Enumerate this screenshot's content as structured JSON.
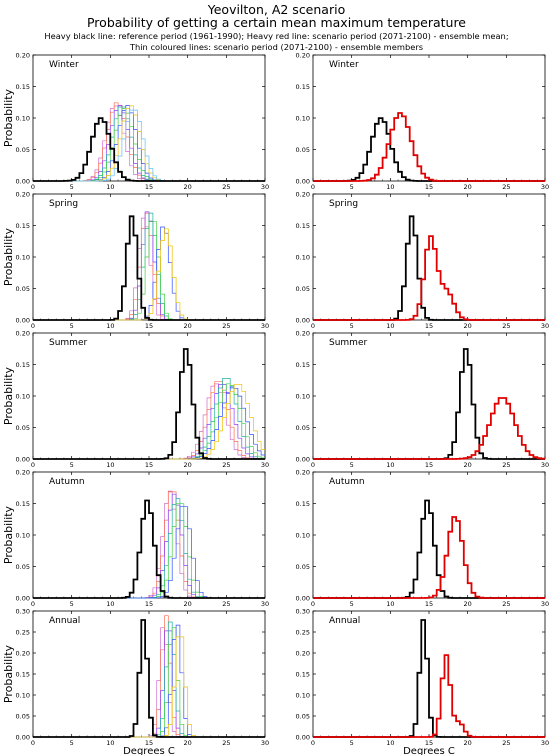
{
  "header": {
    "title_line1": "Yeovilton, A2 scenario",
    "title_line2": "Probability of getting a certain mean maximum temperature",
    "note_line1": "Heavy black line: reference period (1961-1990); Heavy red line: scenario period (2071-2100) - ensemble mean;",
    "note_line2": "Thin coloured lines: scenario period (2071-2100) - ensemble members"
  },
  "colors": {
    "reference": "#000000",
    "ensemble_mean": "#e00000",
    "members": [
      "#d070d0",
      "#ff7050",
      "#9040ff",
      "#20b0a0",
      "#40d040",
      "#3050ff",
      "#f0c000",
      "#60c0ff",
      "#ff40a0",
      "#80a000",
      "#b060ff"
    ]
  },
  "chart_data": [
    {
      "type": "line",
      "panel": "Winter",
      "column": "members",
      "xlabel": "",
      "ylabel": "Probability",
      "xlim": [
        0,
        30
      ],
      "ylim": [
        0,
        0.2
      ],
      "xticks": [
        "0",
        "5",
        "10",
        "15",
        "20",
        "25",
        "30"
      ],
      "yticks": [
        "0.00",
        "0.05",
        "0.10",
        "0.15",
        "0.20"
      ],
      "series": [
        {
          "role": "reference",
          "mean": 8.8,
          "sd": 1.25,
          "peak": 0.1
        },
        {
          "role": "member",
          "mean": 10.6,
          "sd": 1.2,
          "peak": 0.12
        },
        {
          "role": "member",
          "mean": 10.9,
          "sd": 1.25,
          "peak": 0.125
        },
        {
          "role": "member",
          "mean": 11.2,
          "sd": 1.2,
          "peak": 0.12
        },
        {
          "role": "member",
          "mean": 11.5,
          "sd": 1.2,
          "peak": 0.12
        },
        {
          "role": "member",
          "mean": 11.8,
          "sd": 1.25,
          "peak": 0.115
        },
        {
          "role": "member",
          "mean": 12.2,
          "sd": 1.2,
          "peak": 0.12
        },
        {
          "role": "member",
          "mean": 12.6,
          "sd": 1.25,
          "peak": 0.12
        },
        {
          "role": "member",
          "mean": 13.0,
          "sd": 1.2,
          "peak": 0.115
        }
      ]
    },
    {
      "type": "line",
      "panel": "Winter",
      "column": "mean",
      "xlabel": "",
      "ylabel": "",
      "xlim": [
        0,
        30
      ],
      "ylim": [
        0,
        0.2
      ],
      "xticks": [
        "0",
        "5",
        "10",
        "15",
        "20",
        "25",
        "30"
      ],
      "yticks": [
        "0.00",
        "0.05",
        "0.10",
        "0.15",
        "0.20"
      ],
      "series": [
        {
          "role": "reference",
          "mean": 8.8,
          "sd": 1.25,
          "peak": 0.1
        },
        {
          "role": "ensemble_mean",
          "mean": 11.3,
          "sd": 1.4,
          "peak": 0.108
        }
      ]
    },
    {
      "type": "line",
      "panel": "Spring",
      "column": "members",
      "xlabel": "",
      "ylabel": "Probability",
      "xlim": [
        0,
        30
      ],
      "ylim": [
        0,
        0.2
      ],
      "xticks": [
        "0",
        "5",
        "10",
        "15",
        "20",
        "25",
        "30"
      ],
      "yticks": [
        "0.00",
        "0.05",
        "0.10",
        "0.15",
        "0.20"
      ],
      "series": [
        {
          "role": "reference",
          "mean": 12.8,
          "sd": 0.7,
          "peak": 0.165
        },
        {
          "role": "member",
          "mean": 14.4,
          "sd": 0.75,
          "peak": 0.165
        },
        {
          "role": "member",
          "mean": 14.7,
          "sd": 0.8,
          "peak": 0.17
        },
        {
          "role": "member",
          "mean": 14.9,
          "sd": 0.75,
          "peak": 0.175
        },
        {
          "role": "member",
          "mean": 15.2,
          "sd": 0.8,
          "peak": 0.17
        },
        {
          "role": "member",
          "mean": 15.5,
          "sd": 0.75,
          "peak": 0.165
        },
        {
          "role": "member",
          "mean": 16.9,
          "sd": 0.85,
          "peak": 0.15
        },
        {
          "role": "member",
          "mean": 17.2,
          "sd": 0.85,
          "peak": 0.145
        }
      ]
    },
    {
      "type": "line",
      "panel": "Spring",
      "column": "mean",
      "xlabel": "",
      "ylabel": "",
      "xlim": [
        0,
        30
      ],
      "ylim": [
        0,
        0.2
      ],
      "xticks": [
        "0",
        "5",
        "10",
        "15",
        "20",
        "25",
        "30"
      ],
      "yticks": [
        "0.00",
        "0.05",
        "0.10",
        "0.15",
        "0.20"
      ],
      "series": [
        {
          "role": "reference",
          "mean": 12.8,
          "sd": 0.7,
          "peak": 0.165
        },
        {
          "role": "ensemble_mean",
          "mean": 15.2,
          "sd": 0.8,
          "peak": 0.13
        },
        {
          "role": "ensemble_mean_shoulder",
          "mean": 17.3,
          "sd": 0.9,
          "peak": 0.045
        }
      ]
    },
    {
      "type": "line",
      "panel": "Summer",
      "column": "members",
      "xlabel": "",
      "ylabel": "Probability",
      "xlim": [
        0,
        30
      ],
      "ylim": [
        0,
        0.2
      ],
      "xticks": [
        "0",
        "5",
        "10",
        "15",
        "20",
        "25",
        "30"
      ],
      "yticks": [
        "0.00",
        "0.05",
        "0.10",
        "0.15",
        "0.20"
      ],
      "series": [
        {
          "role": "reference",
          "mean": 19.8,
          "sd": 0.8,
          "peak": 0.175
        },
        {
          "role": "member",
          "mean": 23.6,
          "sd": 1.3,
          "peak": 0.12
        },
        {
          "role": "member",
          "mean": 24.0,
          "sd": 1.3,
          "peak": 0.125
        },
        {
          "role": "member",
          "mean": 24.5,
          "sd": 1.4,
          "peak": 0.12
        },
        {
          "role": "member",
          "mean": 25.0,
          "sd": 1.4,
          "peak": 0.13
        },
        {
          "role": "member",
          "mean": 25.4,
          "sd": 1.5,
          "peak": 0.12
        },
        {
          "role": "member",
          "mean": 25.9,
          "sd": 1.6,
          "peak": 0.115
        },
        {
          "role": "member",
          "mean": 26.5,
          "sd": 1.6,
          "peak": 0.12
        }
      ]
    },
    {
      "type": "line",
      "panel": "Summer",
      "column": "mean",
      "xlabel": "",
      "ylabel": "",
      "xlim": [
        0,
        30
      ],
      "ylim": [
        0,
        0.2
      ],
      "xticks": [
        "0",
        "5",
        "10",
        "15",
        "20",
        "25",
        "30"
      ],
      "yticks": [
        "0.00",
        "0.05",
        "0.10",
        "0.15",
        "0.20"
      ],
      "series": [
        {
          "role": "reference",
          "mean": 19.8,
          "sd": 0.8,
          "peak": 0.175
        },
        {
          "role": "ensemble_mean",
          "mean": 24.5,
          "sd": 1.6,
          "peak": 0.098
        }
      ]
    },
    {
      "type": "line",
      "panel": "Autumn",
      "column": "members",
      "xlabel": "",
      "ylabel": "Probability",
      "xlim": [
        0,
        30
      ],
      "ylim": [
        0,
        0.2
      ],
      "xticks": [
        "0",
        "5",
        "10",
        "15",
        "20",
        "25",
        "30"
      ],
      "yticks": [
        "0.00",
        "0.05",
        "0.10",
        "0.15",
        "0.20"
      ],
      "series": [
        {
          "role": "reference",
          "mean": 14.8,
          "sd": 0.85,
          "peak": 0.155
        },
        {
          "role": "member",
          "mean": 17.7,
          "sd": 0.9,
          "peak": 0.17
        },
        {
          "role": "member",
          "mean": 18.0,
          "sd": 0.9,
          "peak": 0.175
        },
        {
          "role": "member",
          "mean": 18.3,
          "sd": 0.95,
          "peak": 0.165
        },
        {
          "role": "member",
          "mean": 18.6,
          "sd": 0.9,
          "peak": 0.16
        },
        {
          "role": "member",
          "mean": 19.0,
          "sd": 0.95,
          "peak": 0.155
        },
        {
          "role": "member",
          "mean": 19.5,
          "sd": 0.95,
          "peak": 0.15
        }
      ]
    },
    {
      "type": "line",
      "panel": "Autumn",
      "column": "mean",
      "xlabel": "",
      "ylabel": "",
      "xlim": [
        0,
        30
      ],
      "ylim": [
        0,
        0.2
      ],
      "xticks": [
        "0",
        "5",
        "10",
        "15",
        "20",
        "25",
        "30"
      ],
      "yticks": [
        "0.00",
        "0.05",
        "0.10",
        "0.15",
        "0.20"
      ],
      "series": [
        {
          "role": "reference",
          "mean": 14.8,
          "sd": 0.85,
          "peak": 0.155
        },
        {
          "role": "ensemble_mean",
          "mean": 18.4,
          "sd": 1.0,
          "peak": 0.13
        }
      ]
    },
    {
      "type": "line",
      "panel": "Annual",
      "column": "members",
      "xlabel": "Degrees C",
      "ylabel": "Probability",
      "xlim": [
        0,
        30
      ],
      "ylim": [
        0,
        0.3
      ],
      "xticks": [
        "0",
        "5",
        "10",
        "15",
        "20",
        "25",
        "30"
      ],
      "yticks": [
        "0.00",
        "0.05",
        "0.10",
        "0.15",
        "0.20",
        "0.25",
        "0.30"
      ],
      "series": [
        {
          "role": "reference",
          "mean": 14.3,
          "sd": 0.5,
          "peak": 0.28
        },
        {
          "role": "member",
          "mean": 16.9,
          "sd": 0.55,
          "peak": 0.27
        },
        {
          "role": "member",
          "mean": 17.2,
          "sd": 0.55,
          "peak": 0.29
        },
        {
          "role": "member",
          "mean": 17.5,
          "sd": 0.55,
          "peak": 0.28
        },
        {
          "role": "member",
          "mean": 17.8,
          "sd": 0.55,
          "peak": 0.275
        },
        {
          "role": "member",
          "mean": 18.1,
          "sd": 0.55,
          "peak": 0.27
        },
        {
          "role": "member",
          "mean": 18.6,
          "sd": 0.6,
          "peak": 0.275
        },
        {
          "role": "member",
          "mean": 19.0,
          "sd": 0.6,
          "peak": 0.26
        }
      ]
    },
    {
      "type": "line",
      "panel": "Annual",
      "column": "mean",
      "xlabel": "Degrees C",
      "ylabel": "",
      "xlim": [
        0,
        30
      ],
      "ylim": [
        0,
        0.3
      ],
      "xticks": [
        "0",
        "5",
        "10",
        "15",
        "20",
        "25",
        "30"
      ],
      "yticks": [
        "0.00",
        "0.05",
        "0.10",
        "0.15",
        "0.20",
        "0.25",
        "0.30"
      ],
      "series": [
        {
          "role": "reference",
          "mean": 14.3,
          "sd": 0.5,
          "peak": 0.28
        },
        {
          "role": "ensemble_mean",
          "mean": 17.2,
          "sd": 0.55,
          "peak": 0.195
        },
        {
          "role": "ensemble_mean_shoulder",
          "mean": 18.9,
          "sd": 0.6,
          "peak": 0.035
        }
      ]
    }
  ]
}
